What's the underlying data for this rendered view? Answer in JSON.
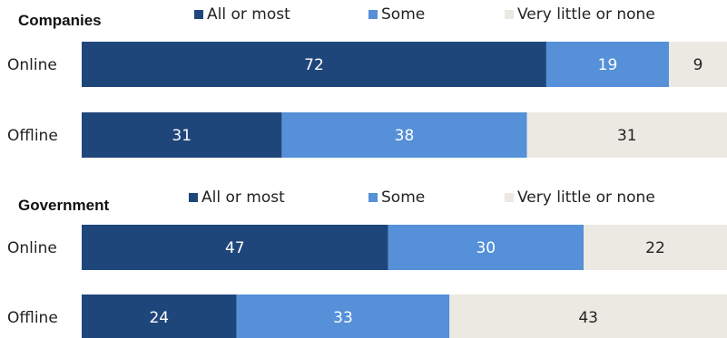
{
  "chart_data": [
    {
      "type": "bar",
      "orientation": "horizontal",
      "stacked": true,
      "title": "Companies",
      "categories": [
        "Online",
        "Offline"
      ],
      "series": [
        {
          "name": "All or most",
          "values": [
            72,
            31
          ]
        },
        {
          "name": "Some",
          "values": [
            19,
            38
          ]
        },
        {
          "name": "Very little or none",
          "values": [
            9,
            31
          ]
        }
      ],
      "xlim": [
        0,
        100
      ],
      "legend": "top",
      "grid": false
    },
    {
      "type": "bar",
      "orientation": "horizontal",
      "stacked": true,
      "title": "Government",
      "categories": [
        "Online",
        "Offline"
      ],
      "series": [
        {
          "name": "All or most",
          "values": [
            47,
            24
          ]
        },
        {
          "name": "Some",
          "values": [
            30,
            33
          ]
        },
        {
          "name": "Very little or none",
          "values": [
            22,
            43
          ]
        }
      ],
      "xlim": [
        0,
        100
      ],
      "legend": "top",
      "grid": false
    }
  ],
  "colors": {
    "series": [
      "#1f467b",
      "#5590d8",
      "#ece9e3"
    ],
    "labels": [
      "#ffffff",
      "#ffffff",
      "#222222"
    ]
  }
}
